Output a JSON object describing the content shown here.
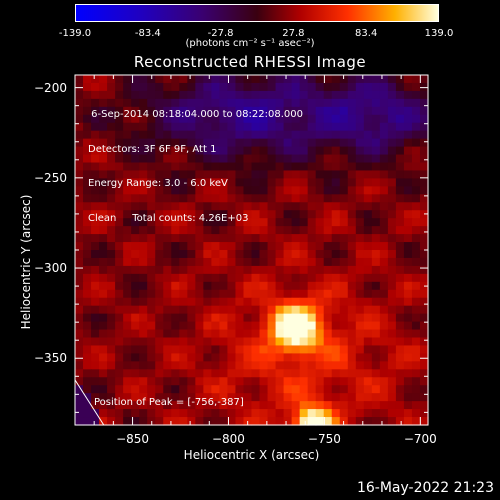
{
  "colorbar": {
    "ticks": [
      "-139.0",
      "-83.4",
      "-27.8",
      "27.8",
      "83.4",
      "139.0"
    ],
    "range": [
      -139.0,
      139.0
    ],
    "units": "(photons cm⁻² s⁻¹ asec⁻²)"
  },
  "title": "Reconstructed RHESSI Image",
  "info_lines": [
    " 6-Sep-2014 08:18:04.000 to 08:22:08.000",
    "Detectors: 3F 6F 9F, Att 1",
    "Energy Range: 3.0 - 6.0 keV",
    "Clean     Total counts: 4.26E+03"
  ],
  "peak_label": "Position of Peak = [-756,-387]",
  "date_stamp": "16-May-2022 21:23",
  "chart_data": {
    "type": "heatmap",
    "xlabel": "Heliocentric X (arcsec)",
    "ylabel": "Heliocentric Y (arcsec)",
    "xlim": [
      -880,
      -696
    ],
    "ylim": [
      -387,
      -193
    ],
    "x_ticks": [
      -850,
      -800,
      -750,
      -700
    ],
    "y_ticks": [
      -200,
      -250,
      -300,
      -350
    ],
    "sources": [
      {
        "x": -765,
        "y": -333,
        "peak": 130,
        "width": 9
      },
      {
        "x": -756,
        "y": -387,
        "peak": 139,
        "width": 7
      }
    ],
    "colormap": "rhessi"
  }
}
